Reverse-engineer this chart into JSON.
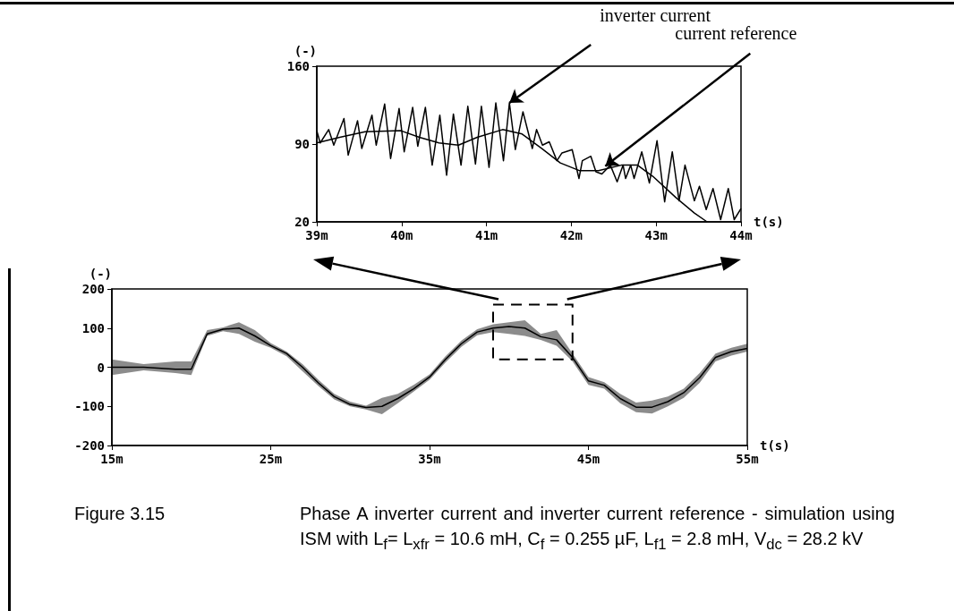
{
  "chart_data": [
    {
      "type": "line",
      "xlabel": "t(s)",
      "ylabel": "(-)",
      "xlim": [
        39,
        44
      ],
      "ylim": [
        20,
        160
      ],
      "xticks": [
        {
          "value": 39,
          "label": "39m"
        },
        {
          "value": 40,
          "label": "40m"
        },
        {
          "value": 41,
          "label": "41m"
        },
        {
          "value": 42,
          "label": "42m"
        },
        {
          "value": 43,
          "label": "43m"
        },
        {
          "value": 44,
          "label": "44m"
        }
      ],
      "yticks": [
        20,
        90,
        160
      ],
      "series": [
        {
          "color": "#000000",
          "x": [
            39.0,
            39.04,
            39.14,
            39.2,
            39.32,
            39.37,
            39.48,
            39.53,
            39.65,
            39.7,
            39.8,
            39.87,
            39.97,
            40.03,
            40.13,
            40.19,
            40.28,
            40.36,
            40.45,
            40.53,
            40.61,
            40.7,
            40.78,
            40.87,
            40.94,
            41.03,
            41.11,
            41.2,
            41.27,
            41.34,
            41.43,
            41.54,
            41.59,
            41.66,
            41.74,
            41.83,
            41.89,
            42.01,
            42.09,
            42.13,
            42.23,
            42.29,
            42.36,
            42.46,
            42.54,
            42.61,
            42.64,
            42.7,
            42.74,
            42.83,
            42.92,
            43.01,
            43.1,
            43.19,
            43.27,
            43.34,
            43.45,
            43.51,
            43.59,
            43.67,
            43.76,
            43.85,
            43.92,
            44.0
          ],
          "values": [
            102,
            91,
            103,
            89,
            113,
            80,
            111,
            86,
            116,
            89,
            126,
            77,
            122,
            83,
            123,
            88,
            123,
            71,
            116,
            62,
            117,
            71,
            124,
            72,
            124,
            69,
            127,
            75,
            127,
            85,
            119,
            86,
            103,
            89,
            92,
            75,
            82,
            85,
            59,
            75,
            79,
            65,
            63,
            71,
            56,
            71,
            59,
            71,
            59,
            83,
            55,
            93,
            38,
            83,
            39,
            71,
            39,
            52,
            31,
            50,
            22,
            50,
            22,
            32
          ]
        },
        {
          "color": "#000000",
          "x": [
            39.0,
            39.27,
            39.57,
            39.99,
            40.21,
            40.44,
            40.67,
            40.89,
            41.19,
            41.42,
            41.65,
            41.87,
            42.1,
            42.32,
            42.59,
            42.78,
            42.96,
            43.23,
            43.45,
            43.6
          ],
          "values": [
            91,
            96,
            101,
            102,
            96,
            91,
            89,
            96,
            103,
            99,
            86,
            73,
            66,
            66,
            71,
            71,
            61,
            42,
            28,
            20
          ]
        }
      ],
      "annotations": [
        {
          "text": "inverter current",
          "x": 41.27,
          "y": 127
        },
        {
          "text": "current reference",
          "x": 42.4,
          "y": 70
        }
      ]
    },
    {
      "type": "line",
      "xlabel": "t(s)",
      "ylabel": "(-)",
      "xlim": [
        15,
        55
      ],
      "ylim": [
        -200,
        200
      ],
      "xticks": [
        {
          "value": 15,
          "label": "15m"
        },
        {
          "value": 25,
          "label": "25m"
        },
        {
          "value": 35,
          "label": "35m"
        },
        {
          "value": 45,
          "label": "45m"
        },
        {
          "value": 55,
          "label": "55m"
        }
      ],
      "yticks": [
        -200,
        -100,
        0,
        100,
        200
      ],
      "series": [
        {
          "color": "#000000",
          "x": [
            15,
            17,
            19,
            20,
            21,
            22,
            23,
            24,
            25,
            26,
            27,
            28,
            29,
            30,
            31,
            32,
            33,
            34,
            35,
            36,
            37,
            38,
            39,
            40,
            41,
            42,
            43,
            44,
            45,
            46,
            47,
            48,
            49,
            50,
            51,
            52,
            53,
            54,
            55
          ],
          "values": [
            0,
            0,
            -5,
            -5,
            85,
            97,
            100,
            80,
            55,
            35,
            0,
            -40,
            -75,
            -95,
            -103,
            -100,
            -80,
            -55,
            -25,
            20,
            60,
            90,
            100,
            104,
            100,
            78,
            70,
            25,
            -35,
            -46,
            -80,
            -102,
            -102,
            -88,
            -65,
            -27,
            25,
            40,
            48
          ],
          "lower": [
            -20,
            -8,
            -15,
            -20,
            80,
            92,
            85,
            65,
            50,
            28,
            -10,
            -48,
            -82,
            -100,
            -108,
            -120,
            -92,
            -62,
            -32,
            12,
            52,
            82,
            90,
            85,
            80,
            70,
            55,
            15,
            -45,
            -55,
            -92,
            -115,
            -118,
            -100,
            -78,
            -40,
            15,
            30,
            40
          ],
          "upper": [
            20,
            8,
            15,
            15,
            95,
            102,
            115,
            95,
            62,
            40,
            8,
            -32,
            -68,
            -88,
            -98,
            -78,
            -68,
            -45,
            -18,
            28,
            68,
            97,
            110,
            115,
            120,
            85,
            95,
            35,
            -25,
            -38,
            -68,
            -90,
            -85,
            -75,
            -55,
            -15,
            35,
            50,
            60
          ]
        }
      ],
      "annotations": [
        "Figure 3.15",
        "Phase A inverter current and inverter current reference - simulation using ISM with L$_{f}$= L$_{xfr}$ = 10.6 mH, C$_{f}$ = 0.255 µF, L$_{f1}$ = 2.8 mH, V$_{dc}$ = 28.2 kV"
      ]
    }
  ]
}
